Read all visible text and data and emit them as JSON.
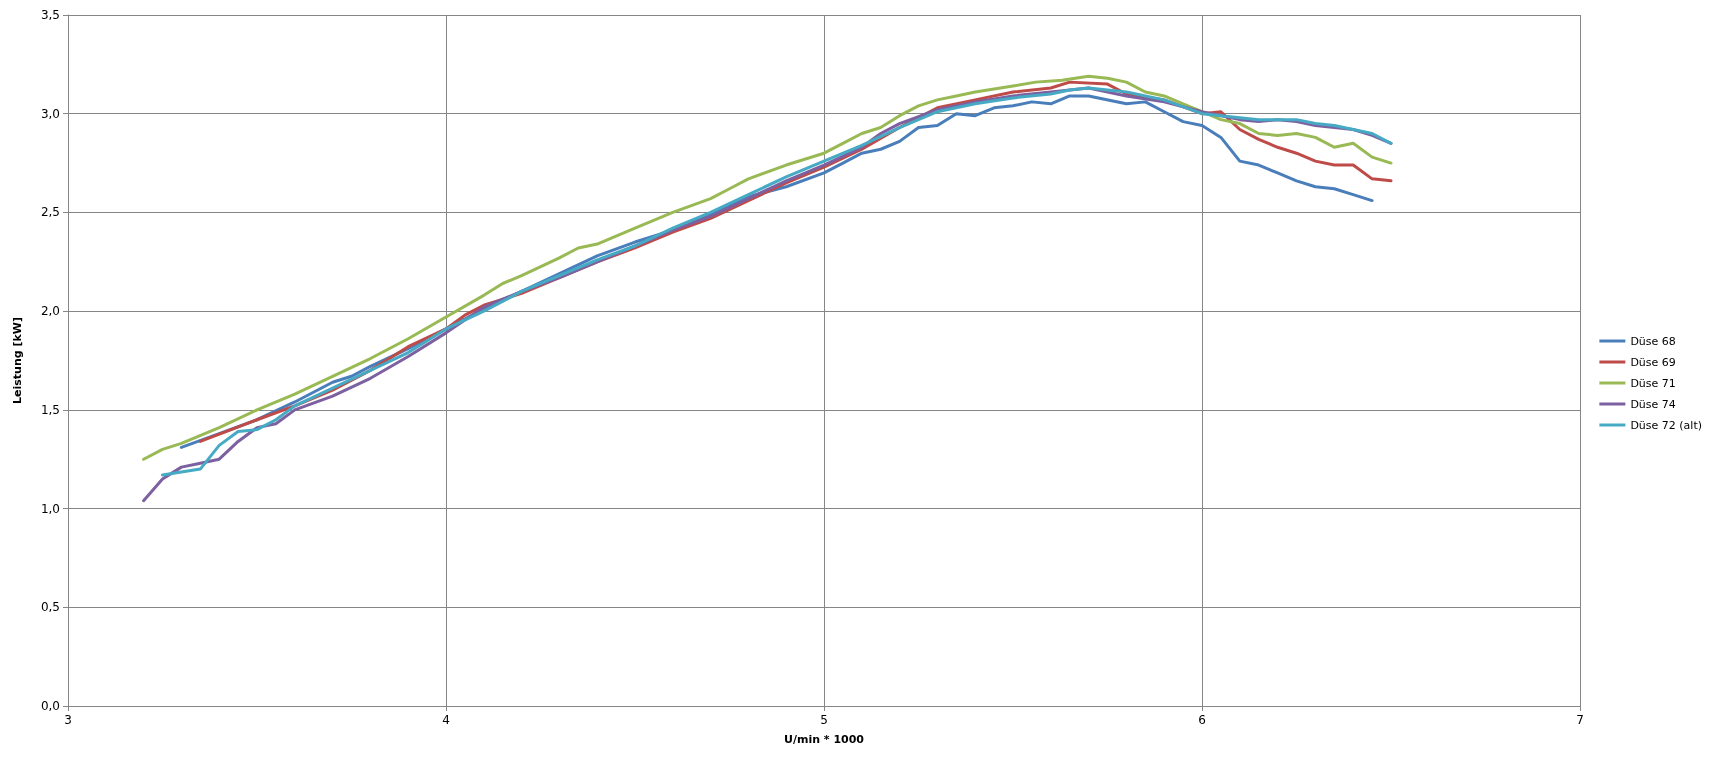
{
  "chart_data": {
    "type": "line",
    "xlabel": "U/min * 1000",
    "ylabel": "Leistung [kW]",
    "xlim": [
      3,
      7
    ],
    "xticks": [
      3,
      4,
      5,
      6,
      7
    ],
    "ylim": [
      0,
      3.5
    ],
    "yticks": [
      {
        "value": 0,
        "label": "0,0"
      },
      {
        "value": 0.5,
        "label": "0,5"
      },
      {
        "value": 1,
        "label": "1,0"
      },
      {
        "value": 1.5,
        "label": "1,5"
      },
      {
        "value": 2,
        "label": "2,0"
      },
      {
        "value": 2.5,
        "label": "2,5"
      },
      {
        "value": 3,
        "label": "3,0"
      },
      {
        "value": 3.5,
        "label": "3,5"
      }
    ],
    "grid": true,
    "legend": "right",
    "marker": "none",
    "line_style": "solid",
    "series": [
      {
        "name": "Düse 68",
        "color": "#4a7ebb",
        "x": [
          3.3,
          3.4,
          3.5,
          3.6,
          3.7,
          3.75,
          3.8,
          3.9,
          4.0,
          4.1,
          4.2,
          4.3,
          4.4,
          4.5,
          4.6,
          4.7,
          4.8,
          4.9,
          5.0,
          5.05,
          5.1,
          5.15,
          5.2,
          5.25,
          5.3,
          5.35,
          5.4,
          5.45,
          5.5,
          5.55,
          5.6,
          5.65,
          5.7,
          5.8,
          5.85,
          5.9,
          5.95,
          6.0,
          6.05,
          6.1,
          6.15,
          6.2,
          6.25,
          6.3,
          6.35,
          6.4,
          6.45
        ],
        "values": [
          1.31,
          1.38,
          1.45,
          1.54,
          1.64,
          1.67,
          1.72,
          1.81,
          1.91,
          2.01,
          2.1,
          2.19,
          2.28,
          2.35,
          2.41,
          2.49,
          2.58,
          2.63,
          2.7,
          2.75,
          2.8,
          2.82,
          2.86,
          2.93,
          2.94,
          3.0,
          2.99,
          3.03,
          3.04,
          3.06,
          3.05,
          3.09,
          3.09,
          3.05,
          3.06,
          3.01,
          2.96,
          2.94,
          2.88,
          2.76,
          2.74,
          2.7,
          2.66,
          2.63,
          2.62,
          2.59,
          2.56
        ]
      },
      {
        "name": "Düse 69",
        "color": "#be4b48",
        "x": [
          3.35,
          3.5,
          3.6,
          3.7,
          3.8,
          3.9,
          4.0,
          4.05,
          4.1,
          4.2,
          4.3,
          4.4,
          4.5,
          4.6,
          4.7,
          4.8,
          4.9,
          5.0,
          5.1,
          5.2,
          5.3,
          5.4,
          5.5,
          5.6,
          5.65,
          5.75,
          5.8,
          5.9,
          6.0,
          6.05,
          6.1,
          6.15,
          6.2,
          6.25,
          6.3,
          6.35,
          6.4,
          6.45,
          6.5
        ],
        "values": [
          1.34,
          1.45,
          1.52,
          1.6,
          1.7,
          1.82,
          1.91,
          1.98,
          2.03,
          2.09,
          2.17,
          2.25,
          2.32,
          2.4,
          2.47,
          2.56,
          2.65,
          2.73,
          2.82,
          2.93,
          3.03,
          3.07,
          3.11,
          3.13,
          3.16,
          3.15,
          3.1,
          3.07,
          3.0,
          3.01,
          2.92,
          2.87,
          2.83,
          2.8,
          2.76,
          2.74,
          2.74,
          2.67,
          2.66
        ]
      },
      {
        "name": "Düse 71",
        "color": "#98b954",
        "x": [
          3.2,
          3.25,
          3.3,
          3.4,
          3.5,
          3.6,
          3.7,
          3.8,
          3.9,
          4.0,
          4.1,
          4.15,
          4.2,
          4.3,
          4.35,
          4.4,
          4.5,
          4.6,
          4.7,
          4.75,
          4.8,
          4.9,
          5.0,
          5.05,
          5.1,
          5.15,
          5.2,
          5.25,
          5.3,
          5.35,
          5.4,
          5.5,
          5.56,
          5.63,
          5.7,
          5.75,
          5.8,
          5.85,
          5.9,
          5.95,
          6.0,
          6.05,
          6.1,
          6.15,
          6.2,
          6.25,
          6.3,
          6.35,
          6.4,
          6.45,
          6.5
        ],
        "values": [
          1.25,
          1.3,
          1.33,
          1.41,
          1.5,
          1.58,
          1.67,
          1.76,
          1.86,
          1.97,
          2.08,
          2.14,
          2.18,
          2.27,
          2.32,
          2.34,
          2.42,
          2.5,
          2.57,
          2.62,
          2.67,
          2.74,
          2.8,
          2.85,
          2.9,
          2.93,
          2.99,
          3.04,
          3.07,
          3.09,
          3.11,
          3.14,
          3.16,
          3.17,
          3.19,
          3.18,
          3.16,
          3.11,
          3.09,
          3.05,
          3.01,
          2.97,
          2.95,
          2.9,
          2.89,
          2.9,
          2.88,
          2.83,
          2.85,
          2.78,
          2.75
        ]
      },
      {
        "name": "Düse 74",
        "color": "#7d60a0",
        "x": [
          3.2,
          3.25,
          3.3,
          3.35,
          3.4,
          3.45,
          3.5,
          3.55,
          3.6,
          3.7,
          3.8,
          3.9,
          4.0,
          4.1,
          4.2,
          4.3,
          4.4,
          4.5,
          4.6,
          4.7,
          4.8,
          4.9,
          5.0,
          5.1,
          5.15,
          5.2,
          5.3,
          5.4,
          5.5,
          5.6,
          5.7,
          5.8,
          5.9,
          6.0,
          6.1,
          6.15,
          6.2,
          6.25,
          6.3,
          6.35,
          6.4,
          6.45,
          6.5
        ],
        "values": [
          1.04,
          1.15,
          1.21,
          1.23,
          1.25,
          1.34,
          1.41,
          1.43,
          1.5,
          1.57,
          1.66,
          1.77,
          1.89,
          2.02,
          2.1,
          2.17,
          2.25,
          2.33,
          2.41,
          2.48,
          2.57,
          2.66,
          2.74,
          2.83,
          2.9,
          2.95,
          3.02,
          3.06,
          3.09,
          3.11,
          3.13,
          3.09,
          3.06,
          3.01,
          2.97,
          2.96,
          2.97,
          2.96,
          2.94,
          2.93,
          2.92,
          2.89,
          2.85
        ]
      },
      {
        "name": "Düse 72 (alt)",
        "color": "#46aac5",
        "x": [
          3.25,
          3.35,
          3.4,
          3.45,
          3.5,
          3.55,
          3.6,
          3.7,
          3.8,
          3.9,
          4.0,
          4.1,
          4.2,
          4.3,
          4.4,
          4.5,
          4.6,
          4.7,
          4.8,
          4.9,
          5.0,
          5.1,
          5.2,
          5.3,
          5.4,
          5.5,
          5.6,
          5.65,
          5.7,
          5.8,
          5.9,
          6.0,
          6.1,
          6.15,
          6.2,
          6.25,
          6.3,
          6.35,
          6.4,
          6.45,
          6.5
        ],
        "values": [
          1.17,
          1.2,
          1.32,
          1.39,
          1.4,
          1.45,
          1.52,
          1.61,
          1.7,
          1.79,
          1.91,
          2.0,
          2.1,
          2.18,
          2.26,
          2.33,
          2.42,
          2.5,
          2.59,
          2.68,
          2.76,
          2.84,
          2.93,
          3.01,
          3.05,
          3.08,
          3.1,
          3.12,
          3.13,
          3.11,
          3.07,
          3.0,
          2.98,
          2.97,
          2.97,
          2.97,
          2.95,
          2.94,
          2.92,
          2.9,
          2.85
        ]
      }
    ]
  }
}
